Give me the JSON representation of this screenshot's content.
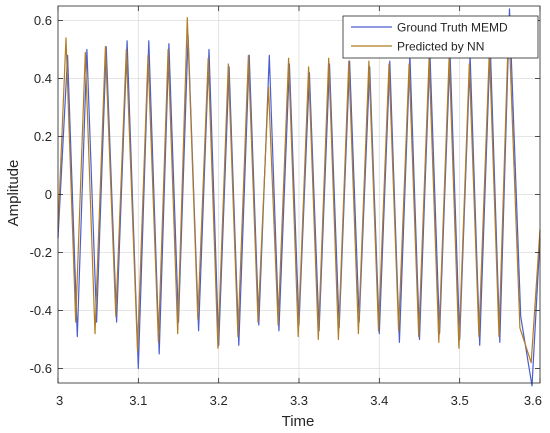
{
  "chart_data": {
    "type": "line",
    "xlabel": "Time",
    "ylabel": "Amplitude",
    "xlim": [
      3.0,
      3.6
    ],
    "ylim": [
      -0.65,
      0.65
    ],
    "xticks": [
      3.0,
      3.1,
      3.2,
      3.3,
      3.4,
      3.5,
      3.6
    ],
    "xtick_labels": [
      "3",
      "3.1",
      "3.2",
      "3.3",
      "3.4",
      "3.5",
      "3.6"
    ],
    "yticks": [
      -0.6,
      -0.4,
      -0.2,
      0,
      0.2,
      0.4,
      0.6
    ],
    "ytick_labels": [
      "-0.6",
      "-0.4",
      "-0.2",
      "0",
      "0.2",
      "0.4",
      "0.6"
    ],
    "grid": true,
    "legend_position": "top-right",
    "series": [
      {
        "name": "Ground Truth MEMD",
        "color": "#4a5ed0",
        "points": [
          [
            3.0,
            -0.15
          ],
          [
            3.012,
            0.48
          ],
          [
            3.024,
            -0.49
          ],
          [
            3.036,
            0.5
          ],
          [
            3.048,
            -0.44
          ],
          [
            3.06,
            0.51
          ],
          [
            3.073,
            -0.44
          ],
          [
            3.086,
            0.53
          ],
          [
            3.1,
            -0.6
          ],
          [
            3.113,
            0.53
          ],
          [
            3.126,
            -0.55
          ],
          [
            3.138,
            0.52
          ],
          [
            3.15,
            -0.44
          ],
          [
            3.162,
            0.55
          ],
          [
            3.175,
            -0.47
          ],
          [
            3.188,
            0.5
          ],
          [
            3.2,
            -0.52
          ],
          [
            3.213,
            0.44
          ],
          [
            3.225,
            -0.52
          ],
          [
            3.238,
            0.48
          ],
          [
            3.25,
            -0.45
          ],
          [
            3.263,
            0.48
          ],
          [
            3.275,
            -0.47
          ],
          [
            3.288,
            0.45
          ],
          [
            3.3,
            -0.45
          ],
          [
            3.313,
            0.42
          ],
          [
            3.325,
            -0.47
          ],
          [
            3.338,
            0.45
          ],
          [
            3.35,
            -0.46
          ],
          [
            3.363,
            0.46
          ],
          [
            3.375,
            -0.44
          ],
          [
            3.388,
            0.44
          ],
          [
            3.4,
            -0.48
          ],
          [
            3.413,
            0.46
          ],
          [
            3.425,
            -0.51
          ],
          [
            3.438,
            0.48
          ],
          [
            3.45,
            -0.5
          ],
          [
            3.463,
            0.49
          ],
          [
            3.475,
            -0.48
          ],
          [
            3.488,
            0.49
          ],
          [
            3.5,
            -0.5
          ],
          [
            3.513,
            0.48
          ],
          [
            3.525,
            -0.52
          ],
          [
            3.538,
            0.52
          ],
          [
            3.55,
            -0.51
          ],
          [
            3.562,
            0.64
          ],
          [
            3.576,
            -0.42
          ],
          [
            3.59,
            -0.66
          ],
          [
            3.6,
            -0.15
          ]
        ]
      },
      {
        "name": "Predicted by NN",
        "color": "#b07d26",
        "points": [
          [
            3.0,
            -0.12
          ],
          [
            3.01,
            0.54
          ],
          [
            3.022,
            -0.44
          ],
          [
            3.034,
            0.49
          ],
          [
            3.046,
            -0.48
          ],
          [
            3.059,
            0.51
          ],
          [
            3.072,
            -0.42
          ],
          [
            3.085,
            0.5
          ],
          [
            3.099,
            -0.54
          ],
          [
            3.112,
            0.48
          ],
          [
            3.125,
            -0.51
          ],
          [
            3.137,
            0.5
          ],
          [
            3.149,
            -0.48
          ],
          [
            3.161,
            0.61
          ],
          [
            3.174,
            -0.43
          ],
          [
            3.187,
            0.47
          ],
          [
            3.199,
            -0.53
          ],
          [
            3.212,
            0.45
          ],
          [
            3.224,
            -0.49
          ],
          [
            3.237,
            0.48
          ],
          [
            3.249,
            -0.44
          ],
          [
            3.262,
            0.37
          ],
          [
            3.274,
            -0.45
          ],
          [
            3.287,
            0.47
          ],
          [
            3.299,
            -0.49
          ],
          [
            3.312,
            0.44
          ],
          [
            3.324,
            -0.5
          ],
          [
            3.337,
            0.47
          ],
          [
            3.349,
            -0.5
          ],
          [
            3.362,
            0.46
          ],
          [
            3.374,
            -0.48
          ],
          [
            3.387,
            0.46
          ],
          [
            3.399,
            -0.47
          ],
          [
            3.412,
            0.45
          ],
          [
            3.424,
            -0.47
          ],
          [
            3.437,
            0.45
          ],
          [
            3.449,
            -0.49
          ],
          [
            3.462,
            0.47
          ],
          [
            3.474,
            -0.51
          ],
          [
            3.487,
            0.48
          ],
          [
            3.499,
            -0.53
          ],
          [
            3.512,
            0.45
          ],
          [
            3.524,
            -0.49
          ],
          [
            3.537,
            0.5
          ],
          [
            3.549,
            -0.49
          ],
          [
            3.561,
            0.6
          ],
          [
            3.575,
            -0.46
          ],
          [
            3.589,
            -0.58
          ],
          [
            3.6,
            -0.12
          ]
        ]
      }
    ]
  }
}
